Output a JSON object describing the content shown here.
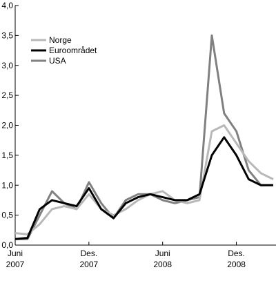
{
  "chart_data": {
    "type": "line",
    "x": [
      "2007-06",
      "2007-07",
      "2007-08",
      "2007-09",
      "2007-10",
      "2007-11",
      "2007-12",
      "2008-01",
      "2008-02",
      "2008-03",
      "2008-04",
      "2008-05",
      "2008-06",
      "2008-07",
      "2008-08",
      "2008-09",
      "2008-10",
      "2008-11",
      "2008-12",
      "2009-01",
      "2009-02",
      "2009-03"
    ],
    "series": [
      {
        "name": "Norge",
        "color": "#b8b8b8",
        "values": [
          0.2,
          0.18,
          0.35,
          0.6,
          0.65,
          0.6,
          0.85,
          0.6,
          0.5,
          0.6,
          0.75,
          0.85,
          0.9,
          0.75,
          0.7,
          0.75,
          1.9,
          2.0,
          1.7,
          1.4,
          1.2,
          1.1
        ]
      },
      {
        "name": "Euroområdet",
        "color": "#000000",
        "values": [
          0.1,
          0.12,
          0.6,
          0.75,
          0.7,
          0.65,
          0.95,
          0.6,
          0.45,
          0.7,
          0.8,
          0.85,
          0.8,
          0.75,
          0.75,
          0.85,
          1.5,
          1.8,
          1.5,
          1.1,
          1.0,
          1.0
        ]
      },
      {
        "name": "USA",
        "color": "#808080",
        "values": [
          0.1,
          0.1,
          0.5,
          0.9,
          0.7,
          0.6,
          1.05,
          0.7,
          0.45,
          0.75,
          0.85,
          0.85,
          0.75,
          0.7,
          0.75,
          0.8,
          3.5,
          2.2,
          1.9,
          1.25,
          1.0,
          1.0
        ]
      }
    ],
    "xlim": [
      "2007-06",
      "2009-03"
    ],
    "xticks": [
      {
        "value": "2007-06",
        "label": "Juni 2007"
      },
      {
        "value": "2007-12",
        "label": "Des. 2007"
      },
      {
        "value": "2008-06",
        "label": "Juni 2008"
      },
      {
        "value": "2008-12",
        "label": "Des. 2008"
      }
    ],
    "ylim": [
      0,
      4
    ],
    "yticks": [
      {
        "value": 0,
        "label": "0,0"
      },
      {
        "value": 0.5,
        "label": "0,5"
      },
      {
        "value": 1,
        "label": "1,0"
      },
      {
        "value": 1.5,
        "label": "1,5"
      },
      {
        "value": 2,
        "label": "2,0"
      },
      {
        "value": 2.5,
        "label": "2,5"
      },
      {
        "value": 3,
        "label": "3,0"
      },
      {
        "value": 3.5,
        "label": "3,5"
      },
      {
        "value": 4,
        "label": "4,0"
      }
    ],
    "grid": false,
    "legend": "upper-left"
  }
}
